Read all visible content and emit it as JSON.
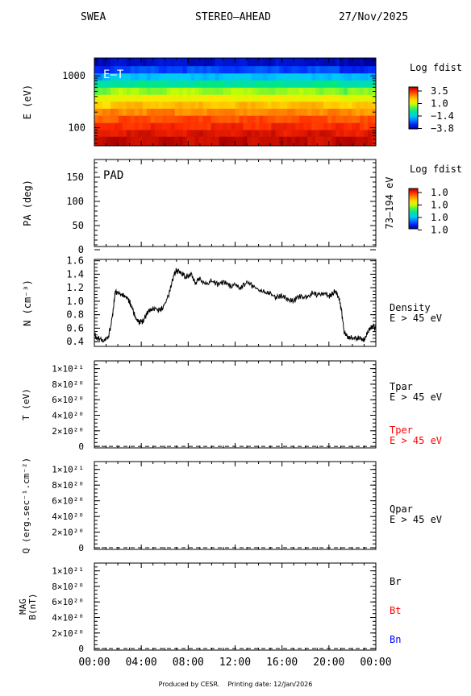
{
  "header": {
    "instrument": "SWEA",
    "spacecraft": "STEREO–AHEAD",
    "date": "27/Nov/2025"
  },
  "footer": {
    "produced": "Produced by CESR.",
    "printing": "Printing date: 12/Jan/2026"
  },
  "colors": {
    "tper": "#ff0000",
    "bt": "#ff0000",
    "bn": "#0000ff",
    "trace": "#000000"
  },
  "chart_data": [
    {
      "type": "heatmap",
      "panel_label": "E–T",
      "ylabel": "E (eV)",
      "y_scale": "log",
      "yticks": [
        "1000",
        "100"
      ],
      "ytick_values": [
        1000,
        100
      ],
      "colorbar_title": "Log fdist",
      "colorbar_ticks": [
        "3.5",
        "1.0",
        "−1.4",
        "−3.8"
      ],
      "description_rows": [
        {
          "energy": 1800,
          "level": 0.05
        },
        {
          "energy": 1300,
          "level": 0.15
        },
        {
          "energy": 950,
          "level": 0.28
        },
        {
          "energy": 700,
          "level": 0.42
        },
        {
          "energy": 500,
          "level": 0.55
        },
        {
          "energy": 370,
          "level": 0.65
        },
        {
          "energy": 270,
          "level": 0.73
        },
        {
          "energy": 200,
          "level": 0.8
        },
        {
          "energy": 145,
          "level": 0.86
        },
        {
          "energy": 105,
          "level": 0.9
        },
        {
          "energy": 78,
          "level": 0.94
        },
        {
          "energy": 58,
          "level": 0.97
        }
      ]
    },
    {
      "type": "heatmap",
      "panel_label": "PAD",
      "ylabel": "PA (deg)",
      "ylim": [
        0,
        180
      ],
      "yticks": [
        "150",
        "100",
        "50",
        "0"
      ],
      "ytick_values": [
        150,
        100,
        50,
        0
      ],
      "right_label": "73–194 eV",
      "colorbar_title": "Log fdist",
      "colorbar_ticks": [
        "1.0",
        "1.0",
        "1.0",
        "1.0"
      ]
    },
    {
      "type": "line",
      "ylabel": "N (cm⁻³)",
      "ylim": [
        0.33,
        1.62
      ],
      "yticks": [
        "1.6",
        "1.4",
        "1.2",
        "1.0",
        "0.8",
        "0.6",
        "0.4"
      ],
      "ytick_values": [
        1.6,
        1.4,
        1.2,
        1.0,
        0.8,
        0.6,
        0.4
      ],
      "legend": [
        "Density",
        "E > 45 eV"
      ],
      "series": [
        {
          "x_hours": [
            0,
            0.3,
            0.8,
            1.2,
            1.5,
            1.7,
            1.8,
            2.2,
            2.5,
            2.8,
            3.0,
            3.3,
            3.6,
            3.9,
            4.2,
            4.5,
            4.8,
            5.2,
            5.6,
            6.0,
            6.4,
            6.8,
            7.0,
            7.4,
            7.8,
            8.2,
            8.6,
            9.0,
            9.5,
            10.0,
            10.5,
            11.0,
            11.5,
            12.0,
            12.5,
            13.0,
            13.5,
            14.0,
            14.5,
            15.0,
            15.5,
            16.0,
            16.5,
            17.0,
            17.5,
            18.0,
            18.5,
            19.0,
            19.5,
            20.0,
            20.3,
            20.6,
            20.9,
            21.1,
            21.3,
            21.6,
            22.0,
            22.4,
            22.8,
            23.0,
            23.3,
            23.6,
            24.0
          ],
          "values": [
            0.53,
            0.47,
            0.45,
            0.48,
            0.75,
            1.05,
            1.17,
            1.13,
            1.1,
            1.08,
            1.02,
            0.88,
            0.75,
            0.7,
            0.74,
            0.85,
            0.9,
            0.92,
            0.88,
            0.98,
            1.15,
            1.42,
            1.48,
            1.45,
            1.38,
            1.42,
            1.3,
            1.35,
            1.28,
            1.32,
            1.27,
            1.3,
            1.25,
            1.28,
            1.22,
            1.3,
            1.25,
            1.2,
            1.15,
            1.12,
            1.08,
            1.1,
            1.05,
            1.03,
            1.1,
            1.07,
            1.14,
            1.12,
            1.15,
            1.1,
            1.13,
            1.18,
            1.05,
            0.85,
            0.55,
            0.5,
            0.48,
            0.47,
            0.46,
            0.44,
            0.55,
            0.65,
            0.62
          ]
        }
      ]
    },
    {
      "type": "line",
      "ylabel": "T (eV)",
      "ylim": [
        -2e+19,
        1.1e+21
      ],
      "yticks": [
        "1×10²¹",
        "8×10²⁰",
        "6×10²⁰",
        "4×10²⁰",
        "2×10²⁰",
        "0"
      ],
      "ytick_values": [
        1e+21,
        8e+20,
        6e+20,
        4e+20,
        2e+20,
        0
      ],
      "legend": [
        "Tpar",
        "E > 45 eV",
        "Tper",
        "E > 45 eV"
      ],
      "series": [
        {
          "name": "Tpar",
          "x_hours": [
            0,
            24
          ],
          "values": [
            0,
            0
          ]
        }
      ]
    },
    {
      "type": "line",
      "ylabel": "Q (erg.sec⁻¹.cm⁻²)",
      "ylim": [
        -2e+19,
        1.1e+21
      ],
      "yticks": [
        "1×10²¹",
        "8×10²⁰",
        "6×10²⁰",
        "4×10²⁰",
        "2×10²⁰",
        "0"
      ],
      "ytick_values": [
        1e+21,
        8e+20,
        6e+20,
        4e+20,
        2e+20,
        0
      ],
      "legend": [
        "Qpar",
        "E > 45 eV"
      ],
      "series": [
        {
          "name": "Qpar",
          "x_hours": [
            0,
            24
          ],
          "values": [
            0,
            0
          ]
        }
      ]
    },
    {
      "type": "line",
      "ylabel": "MAG B(nT)",
      "ylim": [
        -2e+19,
        1.1e+21
      ],
      "yticks": [
        "1×10²¹",
        "8×10²⁰",
        "6×10²⁰",
        "4×10²⁰",
        "2×10²⁰",
        "0"
      ],
      "ytick_values": [
        1e+21,
        8e+20,
        6e+20,
        4e+20,
        2e+20,
        0
      ],
      "legend": [
        "Br",
        "Bt",
        "Bn"
      ],
      "series": [
        {
          "name": "Br",
          "x_hours": [
            0,
            24
          ],
          "values": [
            0,
            0
          ]
        }
      ]
    }
  ],
  "x_axis": {
    "xlim": [
      0,
      24
    ],
    "ticks": [
      "00:00",
      "04:00",
      "08:00",
      "12:00",
      "16:00",
      "20:00",
      "00:00"
    ],
    "tick_values": [
      0,
      4,
      8,
      12,
      16,
      20,
      24
    ]
  }
}
